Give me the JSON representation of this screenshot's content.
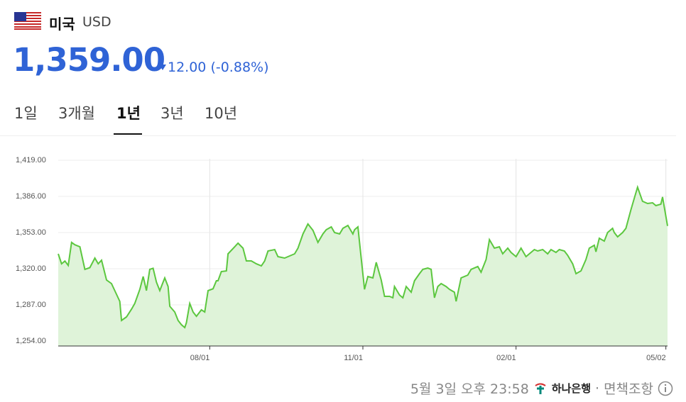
{
  "header": {
    "country": "미국",
    "currency": "USD",
    "price": "1,359.00",
    "change": "12.00",
    "change_pct": "(-0.88%)"
  },
  "tabs": [
    "1일",
    "3개월",
    "1년",
    "3년",
    "10년"
  ],
  "active_tab": 2,
  "footer": {
    "timestamp": "5월 3일 오후 23:58",
    "bank": "하나은행",
    "separator": "·",
    "disclaimer": "면책조항"
  },
  "chart_data": {
    "type": "area",
    "color": "#5cc73f",
    "fill": "#dff3d9",
    "grid": true,
    "xlim": [
      0,
      366
    ],
    "ylim": [
      1249.5,
      1435.8
    ],
    "xticks": [
      {
        "value": 91,
        "label": "08/01"
      },
      {
        "value": 183,
        "label": "11/01"
      },
      {
        "value": 275,
        "label": "02/01"
      },
      {
        "value": 365,
        "label": "05/02"
      }
    ],
    "yticks": [
      {
        "value": 1254,
        "label": "1,254.00"
      },
      {
        "value": 1287,
        "label": "1,287.00"
      },
      {
        "value": 1320,
        "label": "1,320.00"
      },
      {
        "value": 1353,
        "label": "1,353.00"
      },
      {
        "value": 1386,
        "label": "1,386.00"
      },
      {
        "value": 1419,
        "label": "1,419.00"
      }
    ],
    "x": [
      0,
      2,
      4,
      6,
      8,
      10,
      13,
      16,
      19,
      22,
      24,
      26,
      29,
      32,
      35,
      37,
      38,
      41,
      44,
      46,
      49,
      51,
      53,
      55,
      57,
      59,
      61,
      64,
      66,
      67,
      70,
      72,
      74,
      76,
      77,
      79,
      81,
      83,
      86,
      88,
      90,
      93,
      95,
      96,
      98,
      101,
      102,
      106,
      108,
      111,
      113,
      116,
      119,
      122,
      124,
      126,
      130,
      132,
      136,
      138,
      142,
      144,
      147,
      150,
      153,
      156,
      159,
      161,
      164,
      166,
      169,
      171,
      174,
      177,
      178,
      180,
      182,
      184,
      186,
      189,
      191,
      194,
      196,
      199,
      201,
      202,
      205,
      207,
      209,
      212,
      214,
      217,
      219,
      222,
      224,
      226,
      228,
      230,
      233,
      235,
      238,
      239,
      242,
      246,
      248,
      252,
      254,
      257,
      259,
      262,
      265,
      267,
      270,
      272,
      275,
      278,
      281,
      283,
      286,
      288,
      291,
      294,
      296,
      299,
      301,
      304,
      306,
      309,
      311,
      314,
      317,
      319,
      322,
      323,
      325,
      328,
      330,
      333,
      334,
      336,
      339,
      341,
      344,
      346,
      348,
      351,
      354,
      357,
      359,
      362,
      363,
      366
    ],
    "values": [
      1333.6,
      1324.5,
      1327,
      1323,
      1344,
      1341.9,
      1340,
      1319.4,
      1321,
      1329.7,
      1324.5,
      1327.8,
      1309.7,
      1306.4,
      1296.7,
      1290.2,
      1272.8,
      1276,
      1283,
      1288.3,
      1301.2,
      1312.9,
      1300,
      1319.4,
      1320.4,
      1307.7,
      1300,
      1311.6,
      1303.8,
      1285.7,
      1280.5,
      1272.8,
      1268.9,
      1266.3,
      1270.8,
      1288.3,
      1280.5,
      1276.6,
      1282.5,
      1280.5,
      1300,
      1301.7,
      1309,
      1309,
      1317.4,
      1318,
      1333.6,
      1340,
      1343.3,
      1338.8,
      1327.1,
      1327.1,
      1324.5,
      1322.6,
      1327.1,
      1336.2,
      1337.5,
      1331,
      1329.7,
      1331,
      1333.6,
      1338.8,
      1351.7,
      1360.8,
      1355,
      1344,
      1351.7,
      1355.6,
      1358.2,
      1353,
      1351.7,
      1356.9,
      1359.5,
      1351.7,
      1355.6,
      1358.2,
      1329.1,
      1301.2,
      1312.9,
      1311.6,
      1325.8,
      1309.7,
      1294.8,
      1294.8,
      1293.5,
      1303.8,
      1296,
      1293.5,
      1303.8,
      1298.6,
      1309,
      1315.5,
      1319.4,
      1320.6,
      1319.4,
      1293.5,
      1303.8,
      1306.4,
      1303.8,
      1301.2,
      1298.6,
      1290.2,
      1311.6,
      1314.2,
      1319.4,
      1322,
      1316.8,
      1328.4,
      1346.5,
      1338.8,
      1340,
      1333.6,
      1338.8,
      1334.9,
      1331,
      1338.8,
      1331,
      1333.6,
      1337.5,
      1336.2,
      1337.5,
      1333.6,
      1337.5,
      1334.9,
      1337.5,
      1336.2,
      1332.3,
      1324.5,
      1315.5,
      1318,
      1328.4,
      1338.8,
      1341.4,
      1335.5,
      1347.8,
      1345.2,
      1353,
      1356.9,
      1353,
      1349.1,
      1353,
      1356.9,
      1373.7,
      1384.1,
      1394.4,
      1381.5,
      1379.5,
      1380.2,
      1377.6,
      1378.9,
      1385.4,
      1359
    ]
  }
}
